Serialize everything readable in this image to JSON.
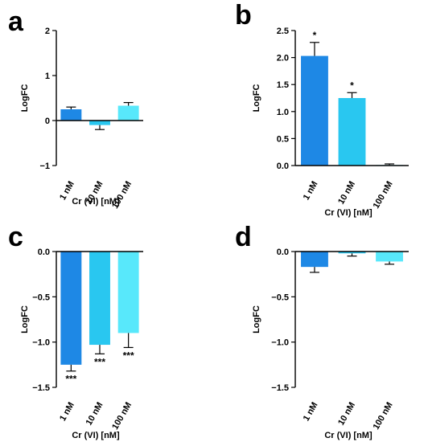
{
  "colors": [
    "#1e88e5",
    "#29c7f0",
    "#58e8fb"
  ],
  "chart_data": [
    {
      "panel": "a",
      "type": "bar",
      "categories": [
        "1 nM",
        "10 nM",
        "100 nM"
      ],
      "values": [
        0.25,
        -0.1,
        0.33
      ],
      "errors": [
        0.05,
        0.1,
        0.07
      ],
      "significance": [
        "",
        "",
        ""
      ],
      "ylim": [
        -1,
        2
      ],
      "yticks": [
        "−1",
        "0",
        "1",
        "2"
      ],
      "ylabel": "LogFC",
      "xlabel": "Cr (VI) [nM]",
      "grid": false
    },
    {
      "panel": "b",
      "type": "bar",
      "categories": [
        "1 nM",
        "10 nM",
        "100 nM"
      ],
      "values": [
        2.03,
        1.25,
        0.01
      ],
      "errors": [
        0.25,
        0.1,
        0.02
      ],
      "significance": [
        "*",
        "*",
        ""
      ],
      "ylim": [
        0,
        2.5
      ],
      "yticks": [
        "0.0",
        "0.5",
        "1.0",
        "1.5",
        "2.0",
        "2.5"
      ],
      "ylabel": "LogFC",
      "xlabel": "Cr (VI) [nM]",
      "grid": false
    },
    {
      "panel": "c",
      "type": "bar",
      "categories": [
        "1 nM",
        "10 nM",
        "100 nM"
      ],
      "values": [
        -1.25,
        -1.03,
        -0.9
      ],
      "errors": [
        0.07,
        0.1,
        0.16
      ],
      "significance": [
        "***",
        "***",
        "***"
      ],
      "ylim": [
        -1.5,
        0
      ],
      "yticks": [
        "−1.5",
        "−1.0",
        "−0.5",
        "0.0"
      ],
      "ylabel": "LogFC",
      "xlabel": "Cr (VI) [nM]",
      "grid": false
    },
    {
      "panel": "d",
      "type": "bar",
      "categories": [
        "1 nM",
        "10 nM",
        "100 nM"
      ],
      "values": [
        -0.17,
        -0.02,
        -0.11
      ],
      "errors": [
        0.06,
        0.03,
        0.03
      ],
      "significance": [
        "",
        "",
        ""
      ],
      "ylim": [
        -1.5,
        0
      ],
      "yticks": [
        "−1.5",
        "−1.0",
        "−0.5",
        "0.0"
      ],
      "ylabel": "LogFC",
      "xlabel": "Cr (VI) [nM]",
      "grid": false
    }
  ]
}
